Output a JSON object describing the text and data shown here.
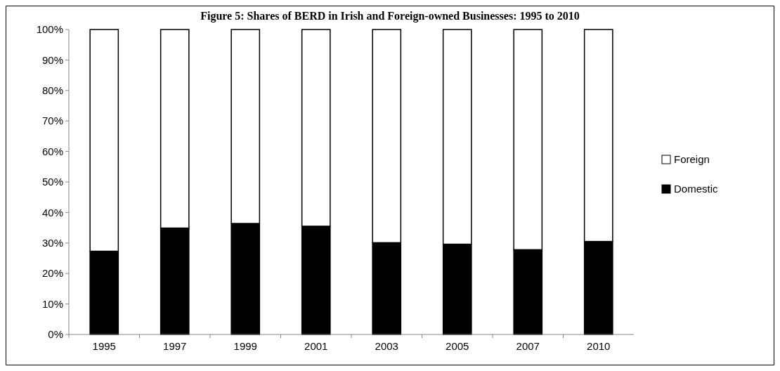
{
  "chart_data": {
    "type": "bar",
    "title": "Figure 5: Shares of BERD in Irish and Foreign-owned Businesses: 1995 to 2010",
    "categories": [
      "1995",
      "1997",
      "1999",
      "2001",
      "2003",
      "2005",
      "2007",
      "2010"
    ],
    "stacked": true,
    "series": [
      {
        "name": "Domestic",
        "color": "#000000",
        "values": [
          27.3,
          34.9,
          36.4,
          35.5,
          30.1,
          29.6,
          27.8,
          30.5
        ]
      },
      {
        "name": "Foreign",
        "color": "#ffffff",
        "values": [
          72.7,
          65.1,
          63.6,
          64.5,
          69.9,
          70.4,
          72.2,
          69.5
        ]
      }
    ],
    "ylim": [
      0,
      100
    ],
    "yticks": [
      {
        "value": 0,
        "label": "0%"
      },
      {
        "value": 10,
        "label": "10%"
      },
      {
        "value": 20,
        "label": "20%"
      },
      {
        "value": 30,
        "label": "30%"
      },
      {
        "value": 40,
        "label": "40%"
      },
      {
        "value": 50,
        "label": "50%"
      },
      {
        "value": 60,
        "label": "60%"
      },
      {
        "value": 70,
        "label": "70%"
      },
      {
        "value": 80,
        "label": "80%"
      },
      {
        "value": 90,
        "label": "90%"
      },
      {
        "value": 100,
        "label": "100%"
      }
    ],
    "grid": false,
    "legend": "right"
  }
}
